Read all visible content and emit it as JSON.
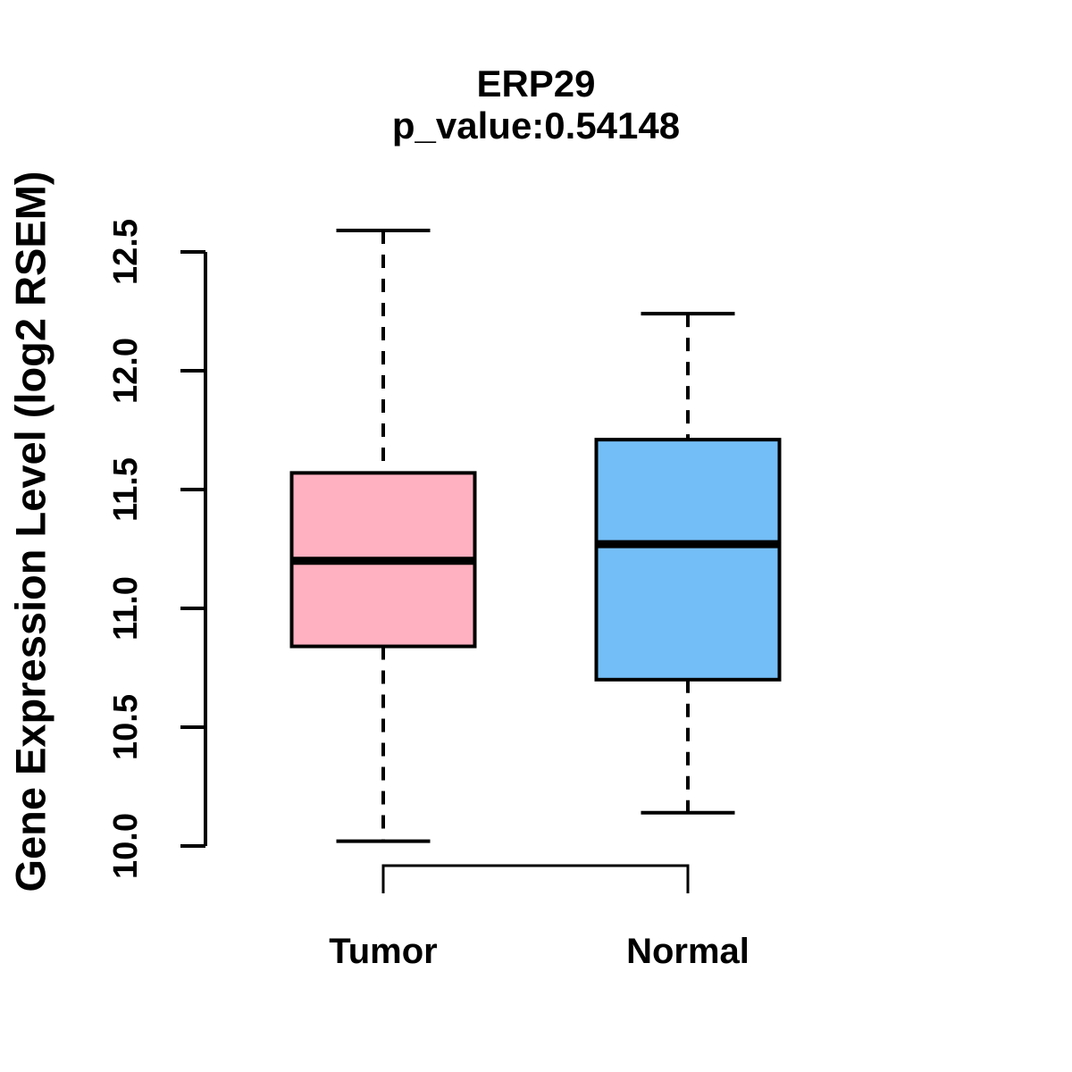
{
  "chart_data": {
    "type": "boxplot",
    "title": "ERP29",
    "subtitle": "p_value:0.54148",
    "ylabel": "Gene Expression Level (log2 RSEM)",
    "xlabel": "",
    "ylim": [
      10.0,
      12.5
    ],
    "yticks": [
      "10.0",
      "10.5",
      "11.0",
      "11.5",
      "12.0",
      "12.5"
    ],
    "grid": "off",
    "legend": "none",
    "colors": {
      "axis": "#000000",
      "text": "#000000",
      "background": "#FFFFFF"
    },
    "groups": [
      {
        "label": "Tumor",
        "color": "#FFB0C1",
        "whisker_low": 10.02,
        "q1": 10.84,
        "median": 11.2,
        "q3": 11.57,
        "whisker_high": 12.59
      },
      {
        "label": "Normal",
        "color": "#74BEF7",
        "whisker_low": 10.14,
        "q1": 10.7,
        "median": 11.27,
        "q3": 11.71,
        "whisker_high": 12.24
      }
    ]
  }
}
